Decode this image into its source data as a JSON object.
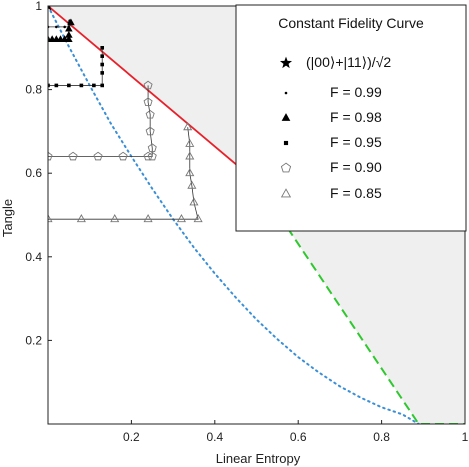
{
  "chart_data": {
    "type": "scatter",
    "title": "",
    "xlabel": "Linear  Entropy",
    "ylabel": "Tangle",
    "xlim": [
      0,
      1
    ],
    "ylim": [
      0,
      1
    ],
    "x_ticks": [
      "0.2",
      "0.4",
      "0.6",
      "0.8",
      "1"
    ],
    "y_ticks": [
      "0.2",
      "0.4",
      "0.6",
      "0.8",
      "1"
    ],
    "grid": false,
    "legend": {
      "title": "Constant Fidelity Curve",
      "placement": "top-right",
      "entries": [
        {
          "marker": "star",
          "label": "(|00⟩+|11⟩)/√2"
        },
        {
          "marker": "dot",
          "label": "F = 0.99"
        },
        {
          "marker": "triangle-filled",
          "label": "F = 0.98"
        },
        {
          "marker": "square-filled",
          "label": "F = 0.95"
        },
        {
          "marker": "pentagon-open",
          "label": "F = 0.90"
        },
        {
          "marker": "triangle-open",
          "label": "F = 0.85"
        }
      ]
    },
    "colors": {
      "red_boundary": "#e8202a",
      "blue_dotted": "#3a8fd6",
      "green_dashed": "#2fc82f",
      "shaded_region": "#efefef",
      "series_line": "#333333"
    },
    "boundary_curves": [
      {
        "style": "solid-red",
        "x": [
          0,
          0.5
        ],
        "y": [
          1,
          0.58
        ]
      },
      {
        "style": "dotted-blue",
        "x": [
          0,
          0.05,
          0.1,
          0.15,
          0.2,
          0.25,
          0.3,
          0.35,
          0.4,
          0.45,
          0.5,
          0.55,
          0.6,
          0.65,
          0.7,
          0.75,
          0.8,
          0.85,
          0.889
        ],
        "y": [
          1,
          0.903,
          0.81,
          0.72,
          0.64,
          0.563,
          0.49,
          0.422,
          0.36,
          0.303,
          0.25,
          0.203,
          0.16,
          0.123,
          0.09,
          0.063,
          0.04,
          0.023,
          0.0
        ]
      },
      {
        "style": "dashed-green",
        "x": [
          0.5,
          0.889,
          1.0
        ],
        "y": [
          0.58,
          0.0,
          0.0
        ]
      }
    ],
    "shaded_region": {
      "x": [
        0,
        1,
        1,
        0.889,
        0.5,
        0
      ],
      "y": [
        1,
        1,
        0,
        0,
        0.58,
        1
      ]
    },
    "series": [
      {
        "name": "(|00⟩+|11⟩)/√2",
        "marker": "star",
        "x": [
          0.0
        ],
        "y": [
          1.0
        ]
      },
      {
        "name": "F = 0.99",
        "marker": "dot",
        "x": [
          0.0,
          0.02,
          0.04,
          0.05,
          0.05,
          0.052
        ],
        "y": [
          0.95,
          0.95,
          0.95,
          0.95,
          0.96,
          0.965
        ]
      },
      {
        "name": "F = 0.98",
        "marker": "triangle-filled",
        "x": [
          0.0,
          0.01,
          0.02,
          0.03,
          0.04,
          0.05,
          0.05,
          0.05,
          0.055
        ],
        "y": [
          0.92,
          0.92,
          0.92,
          0.92,
          0.92,
          0.92,
          0.93,
          0.945,
          0.96
        ]
      },
      {
        "name": "F = 0.95",
        "marker": "square-filled",
        "x": [
          0.0,
          0.02,
          0.05,
          0.08,
          0.11,
          0.13,
          0.13,
          0.13,
          0.13,
          0.13
        ],
        "y": [
          0.81,
          0.81,
          0.81,
          0.81,
          0.81,
          0.81,
          0.84,
          0.86,
          0.88,
          0.9
        ]
      },
      {
        "name": "F = 0.90",
        "marker": "pentagon-open",
        "x": [
          0.0,
          0.06,
          0.12,
          0.18,
          0.24,
          0.25,
          0.25,
          0.245,
          0.245,
          0.24,
          0.24
        ],
        "y": [
          0.64,
          0.64,
          0.64,
          0.64,
          0.64,
          0.64,
          0.66,
          0.7,
          0.74,
          0.77,
          0.81
        ]
      },
      {
        "name": "F = 0.85",
        "marker": "triangle-open",
        "x": [
          0.0,
          0.08,
          0.16,
          0.24,
          0.32,
          0.36,
          0.35,
          0.345,
          0.34,
          0.34,
          0.34,
          0.335
        ],
        "y": [
          0.49,
          0.49,
          0.49,
          0.49,
          0.49,
          0.49,
          0.53,
          0.57,
          0.6,
          0.64,
          0.67,
          0.71
        ]
      }
    ]
  }
}
